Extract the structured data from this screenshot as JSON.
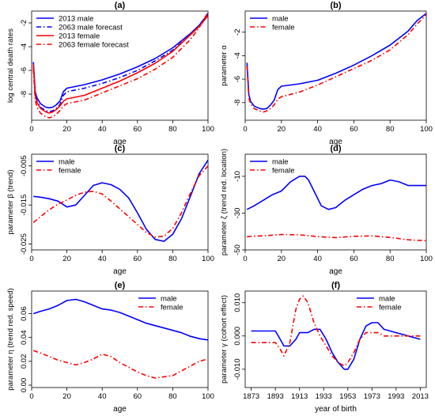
{
  "chart_data": [
    {
      "panel": "(a)",
      "type": "line",
      "title": "(a)",
      "xlabel": "age",
      "ylabel": "log central death rates",
      "xlim": [
        0,
        100
      ],
      "ylim": [
        -10.2,
        -1.0
      ],
      "xticks": [
        0,
        20,
        40,
        60,
        80,
        100
      ],
      "yticks": [
        -8,
        -6,
        -4,
        -2
      ],
      "legend": "top-left",
      "series": [
        {
          "name": "2013 male",
          "color": "#0000ff",
          "dash": "solid",
          "x": [
            1,
            2,
            3,
            5,
            8,
            10,
            12,
            14,
            16,
            18,
            20,
            30,
            40,
            50,
            60,
            70,
            80,
            90,
            95,
            100
          ],
          "y": [
            -5.3,
            -7.8,
            -8.3,
            -8.8,
            -9.1,
            -9.15,
            -9.1,
            -8.9,
            -8.6,
            -7.8,
            -7.5,
            -7.2,
            -6.8,
            -6.3,
            -5.7,
            -5.0,
            -4.1,
            -2.9,
            -2.2,
            -1.3
          ]
        },
        {
          "name": "2063 male forecast",
          "color": "#0000ff",
          "dash": "6,3,1.5,3",
          "x": [
            1,
            2,
            3,
            5,
            8,
            10,
            12,
            14,
            16,
            18,
            20,
            30,
            40,
            50,
            60,
            70,
            80,
            90,
            95,
            100
          ],
          "y": [
            -5.6,
            -8.0,
            -8.6,
            -9.1,
            -9.4,
            -9.5,
            -9.4,
            -9.2,
            -8.9,
            -8.1,
            -7.8,
            -7.5,
            -7.1,
            -6.6,
            -6.0,
            -5.2,
            -4.3,
            -3.0,
            -2.2,
            -1.2
          ]
        },
        {
          "name": "2013 female",
          "color": "#ff0000",
          "dash": "solid",
          "x": [
            1,
            2,
            3,
            5,
            8,
            10,
            12,
            14,
            16,
            18,
            20,
            30,
            40,
            50,
            60,
            70,
            80,
            90,
            95,
            100
          ],
          "y": [
            -5.5,
            -8.1,
            -8.7,
            -9.2,
            -9.5,
            -9.6,
            -9.5,
            -9.3,
            -9.0,
            -8.6,
            -8.4,
            -8.1,
            -7.5,
            -6.9,
            -6.2,
            -5.4,
            -4.4,
            -3.0,
            -2.3,
            -1.4
          ]
        },
        {
          "name": "2063 female forecast",
          "color": "#ff0000",
          "dash": "6,3,1.5,3",
          "x": [
            1,
            2,
            3,
            5,
            8,
            10,
            12,
            14,
            16,
            18,
            20,
            30,
            40,
            50,
            60,
            70,
            80,
            90,
            95,
            100
          ],
          "y": [
            -5.9,
            -8.5,
            -9.1,
            -9.6,
            -9.9,
            -10.0,
            -9.9,
            -9.7,
            -9.4,
            -9.0,
            -8.8,
            -8.5,
            -7.9,
            -7.3,
            -6.7,
            -5.9,
            -4.9,
            -3.4,
            -2.4,
            -1.1
          ]
        }
      ]
    },
    {
      "panel": "(b)",
      "type": "line",
      "title": "(b)",
      "xlabel": "age",
      "ylabel": "parameter α",
      "xlim": [
        0,
        100
      ],
      "ylim": [
        -9.5,
        -0.2
      ],
      "xticks": [
        0,
        20,
        40,
        60,
        80,
        100
      ],
      "yticks": [
        -8,
        -6,
        -4,
        -2
      ],
      "legend": "top-left",
      "series": [
        {
          "name": "male",
          "color": "#0000ff",
          "dash": "solid",
          "x": [
            1,
            2,
            3,
            5,
            8,
            10,
            12,
            14,
            16,
            18,
            20,
            30,
            40,
            50,
            60,
            70,
            80,
            90,
            95,
            100
          ],
          "y": [
            -4.6,
            -7.3,
            -7.9,
            -8.3,
            -8.5,
            -8.55,
            -8.5,
            -8.2,
            -7.8,
            -6.9,
            -6.6,
            -6.4,
            -6.1,
            -5.5,
            -4.8,
            -4.0,
            -3.1,
            -1.9,
            -1.0,
            -0.4
          ]
        },
        {
          "name": "female",
          "color": "#ff0000",
          "dash": "6,3,1.5,3",
          "x": [
            1,
            2,
            3,
            5,
            8,
            10,
            12,
            14,
            16,
            18,
            20,
            30,
            40,
            50,
            60,
            70,
            80,
            90,
            95,
            100
          ],
          "y": [
            -4.9,
            -7.6,
            -8.1,
            -8.5,
            -8.7,
            -8.8,
            -8.7,
            -8.5,
            -8.2,
            -7.7,
            -7.5,
            -7.1,
            -6.5,
            -5.8,
            -5.1,
            -4.4,
            -3.5,
            -2.2,
            -1.3,
            -0.5
          ]
        }
      ]
    },
    {
      "panel": "(c)",
      "type": "line",
      "title": "(c)",
      "xlabel": "age",
      "ylabel": "parameter β (trend)",
      "xlim": [
        0,
        100
      ],
      "ylim": [
        -0.0265,
        -0.002
      ],
      "xticks": [
        0,
        20,
        40,
        60,
        80,
        100
      ],
      "yticks": [
        -0.025,
        -0.015,
        -0.005
      ],
      "legend": "top-left",
      "series": [
        {
          "name": "male",
          "color": "#0000ff",
          "dash": "solid",
          "x": [
            1,
            5,
            10,
            15,
            20,
            25,
            30,
            35,
            40,
            45,
            50,
            55,
            60,
            65,
            70,
            75,
            80,
            85,
            90,
            95,
            100
          ],
          "y": [
            -0.0128,
            -0.013,
            -0.0134,
            -0.014,
            -0.0155,
            -0.015,
            -0.0125,
            -0.01,
            -0.0093,
            -0.0098,
            -0.011,
            -0.0132,
            -0.017,
            -0.0212,
            -0.0238,
            -0.0243,
            -0.0225,
            -0.0185,
            -0.0128,
            -0.007,
            -0.0035
          ]
        },
        {
          "name": "female",
          "color": "#ff0000",
          "dash": "6,3,1.5,3",
          "x": [
            1,
            5,
            10,
            15,
            20,
            25,
            30,
            35,
            40,
            45,
            50,
            55,
            60,
            65,
            70,
            75,
            80,
            85,
            90,
            95,
            100
          ],
          "y": [
            -0.0195,
            -0.018,
            -0.0162,
            -0.0148,
            -0.0137,
            -0.0125,
            -0.0117,
            -0.0115,
            -0.0122,
            -0.014,
            -0.016,
            -0.018,
            -0.02,
            -0.022,
            -0.0232,
            -0.023,
            -0.021,
            -0.017,
            -0.012,
            -0.0075,
            -0.005
          ]
        }
      ]
    },
    {
      "panel": "(d)",
      "type": "line",
      "title": "(d)",
      "xlabel": "age",
      "ylabel": "parameter ζ (trend red. location)",
      "xlim": [
        0,
        100
      ],
      "ylim": [
        -50,
        2
      ],
      "xticks": [
        0,
        20,
        40,
        60,
        80,
        100
      ],
      "yticks": [
        -50,
        -30,
        -10
      ],
      "legend": "top-left",
      "series": [
        {
          "name": "male",
          "color": "#0000ff",
          "dash": "solid",
          "x": [
            1,
            5,
            10,
            15,
            20,
            25,
            30,
            33,
            35,
            38,
            42,
            46,
            50,
            55,
            60,
            65,
            70,
            75,
            80,
            85,
            90,
            95,
            100
          ],
          "y": [
            -28,
            -26,
            -23,
            -20,
            -18,
            -13,
            -10,
            -10,
            -12,
            -18,
            -26,
            -28,
            -27,
            -23,
            -20,
            -17,
            -15,
            -14,
            -12,
            -13,
            -15,
            -15,
            -15
          ]
        },
        {
          "name": "female",
          "color": "#ff0000",
          "dash": "6,3,1.5,3",
          "x": [
            1,
            10,
            20,
            30,
            40,
            50,
            60,
            70,
            80,
            90,
            100
          ],
          "y": [
            -42.8,
            -42.3,
            -41.6,
            -41.8,
            -42.8,
            -43.3,
            -42.6,
            -42.4,
            -43.2,
            -44.5,
            -45.0
          ]
        }
      ]
    },
    {
      "panel": "(e)",
      "type": "line",
      "title": "(e)",
      "xlabel": "age",
      "ylabel": "parameter η (trend red. speed)",
      "xlim": [
        0,
        100
      ],
      "ylim": [
        -0.002,
        0.079
      ],
      "xticks": [
        0,
        20,
        40,
        60,
        80,
        100
      ],
      "yticks": [
        0.0,
        0.02,
        0.04,
        0.06
      ],
      "legend": "top-right",
      "series": [
        {
          "name": "male",
          "color": "#0000ff",
          "dash": "solid",
          "x": [
            1,
            5,
            10,
            15,
            20,
            25,
            30,
            35,
            40,
            45,
            50,
            55,
            60,
            65,
            70,
            75,
            80,
            85,
            90,
            95,
            100
          ],
          "y": [
            0.06,
            0.062,
            0.064,
            0.067,
            0.071,
            0.072,
            0.07,
            0.067,
            0.064,
            0.063,
            0.061,
            0.058,
            0.055,
            0.052,
            0.05,
            0.048,
            0.046,
            0.044,
            0.041,
            0.039,
            0.038
          ]
        },
        {
          "name": "female",
          "color": "#ff0000",
          "dash": "6,3,1.5,3",
          "x": [
            1,
            5,
            10,
            15,
            20,
            25,
            30,
            35,
            40,
            45,
            50,
            55,
            60,
            65,
            70,
            75,
            80,
            85,
            90,
            95,
            100
          ],
          "y": [
            0.029,
            0.027,
            0.024,
            0.021,
            0.019,
            0.017,
            0.019,
            0.022,
            0.026,
            0.024,
            0.019,
            0.015,
            0.011,
            0.008,
            0.006,
            0.007,
            0.008,
            0.012,
            0.016,
            0.02,
            0.022
          ]
        }
      ]
    },
    {
      "panel": "(f)",
      "type": "line",
      "title": "(f)",
      "xlabel": "year of birth",
      "ylabel": "parameter γ (cohort effect)",
      "xlim": [
        1868,
        2018
      ],
      "ylim": [
        -0.0155,
        0.0135
      ],
      "xticks": [
        1873,
        1893,
        1913,
        1933,
        1953,
        1973,
        1993,
        2013
      ],
      "xtick_labels": [
        "1873",
        "1893",
        "1913",
        "1933",
        "1953",
        "1973",
        "1993",
        "2013"
      ],
      "yticks": [
        -0.01,
        0.0,
        0.01
      ],
      "legend": "top-right",
      "series": [
        {
          "name": "male",
          "color": "#0000ff",
          "dash": "solid",
          "x": [
            1873,
            1880,
            1887,
            1893,
            1897,
            1900,
            1905,
            1910,
            1913,
            1916,
            1920,
            1925,
            1930,
            1935,
            1940,
            1945,
            1950,
            1953,
            1958,
            1963,
            1968,
            1973,
            1978,
            1983,
            1993,
            2003,
            2013
          ],
          "y": [
            0.0015,
            0.0015,
            0.0015,
            0.0015,
            -0.001,
            -0.003,
            -0.003,
            -0.001,
            0.001,
            0.001,
            0.001,
            0.002,
            0.002,
            -0.001,
            -0.005,
            -0.008,
            -0.01,
            -0.01,
            -0.007,
            -0.001,
            0.003,
            0.004,
            0.004,
            0.002,
            0.001,
            0.0,
            -0.001
          ]
        },
        {
          "name": "female",
          "color": "#ff0000",
          "dash": "6,3,1.5,3",
          "x": [
            1873,
            1880,
            1887,
            1893,
            1897,
            1900,
            1905,
            1910,
            1913,
            1916,
            1920,
            1925,
            1930,
            1935,
            1940,
            1945,
            1950,
            1953,
            1958,
            1963,
            1968,
            1973,
            1978,
            1983,
            1993,
            2003,
            2013
          ],
          "y": [
            -0.002,
            -0.002,
            -0.002,
            -0.002,
            -0.004,
            -0.006,
            -0.002,
            0.008,
            0.011,
            0.012,
            0.01,
            0.004,
            0.0,
            -0.003,
            -0.006,
            -0.008,
            -0.009,
            -0.008,
            -0.005,
            -0.001,
            0.001,
            0.001,
            0.001,
            0.0,
            0.0,
            0.0,
            0.0
          ]
        }
      ]
    }
  ]
}
